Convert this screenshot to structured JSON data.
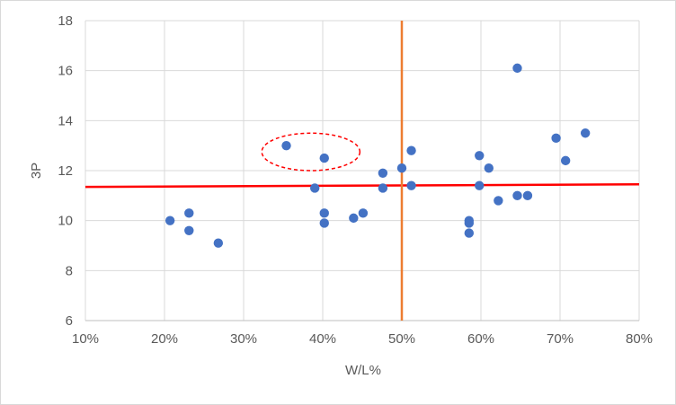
{
  "chart_data": {
    "type": "scatter",
    "title": "",
    "xlabel": "W/L%",
    "ylabel": "3P",
    "xlim": [
      0.1,
      0.8
    ],
    "ylim": [
      6,
      18
    ],
    "x_ticks": [
      0.1,
      0.2,
      0.3,
      0.4,
      0.5,
      0.6,
      0.7,
      0.8
    ],
    "x_tick_labels": [
      "10%",
      "20%",
      "30%",
      "40%",
      "50%",
      "60%",
      "70%",
      "80%"
    ],
    "y_ticks": [
      6,
      8,
      10,
      12,
      14,
      16,
      18
    ],
    "y_tick_labels": [
      "6",
      "8",
      "10",
      "12",
      "14",
      "16",
      "18"
    ],
    "grid": true,
    "point_color": "#4472c4",
    "points": [
      {
        "x": 0.207,
        "y": 10.0
      },
      {
        "x": 0.231,
        "y": 10.3
      },
      {
        "x": 0.231,
        "y": 9.6
      },
      {
        "x": 0.268,
        "y": 9.1
      },
      {
        "x": 0.354,
        "y": 13.0
      },
      {
        "x": 0.39,
        "y": 11.3
      },
      {
        "x": 0.402,
        "y": 12.5
      },
      {
        "x": 0.402,
        "y": 10.3
      },
      {
        "x": 0.402,
        "y": 9.9
      },
      {
        "x": 0.439,
        "y": 10.1
      },
      {
        "x": 0.451,
        "y": 10.3
      },
      {
        "x": 0.476,
        "y": 11.9
      },
      {
        "x": 0.476,
        "y": 11.3
      },
      {
        "x": 0.5,
        "y": 12.1
      },
      {
        "x": 0.512,
        "y": 12.8
      },
      {
        "x": 0.512,
        "y": 11.4
      },
      {
        "x": 0.585,
        "y": 10.0
      },
      {
        "x": 0.585,
        "y": 9.9
      },
      {
        "x": 0.585,
        "y": 9.5
      },
      {
        "x": 0.598,
        "y": 12.6
      },
      {
        "x": 0.598,
        "y": 11.4
      },
      {
        "x": 0.61,
        "y": 12.1
      },
      {
        "x": 0.622,
        "y": 10.8
      },
      {
        "x": 0.646,
        "y": 16.1
      },
      {
        "x": 0.646,
        "y": 11.0
      },
      {
        "x": 0.659,
        "y": 11.0
      },
      {
        "x": 0.695,
        "y": 13.3
      },
      {
        "x": 0.707,
        "y": 12.4
      },
      {
        "x": 0.732,
        "y": 13.5
      }
    ],
    "horizontal_line": {
      "y_start": 11.35,
      "y_end": 11.45,
      "color": "#ff0000"
    },
    "vertical_line": {
      "x": 0.5,
      "color": "#ed7d31"
    },
    "highlight_ellipse": {
      "cx": 0.385,
      "cy": 12.75,
      "rx": 0.062,
      "ry": 0.75,
      "color": "#ff0000"
    }
  }
}
